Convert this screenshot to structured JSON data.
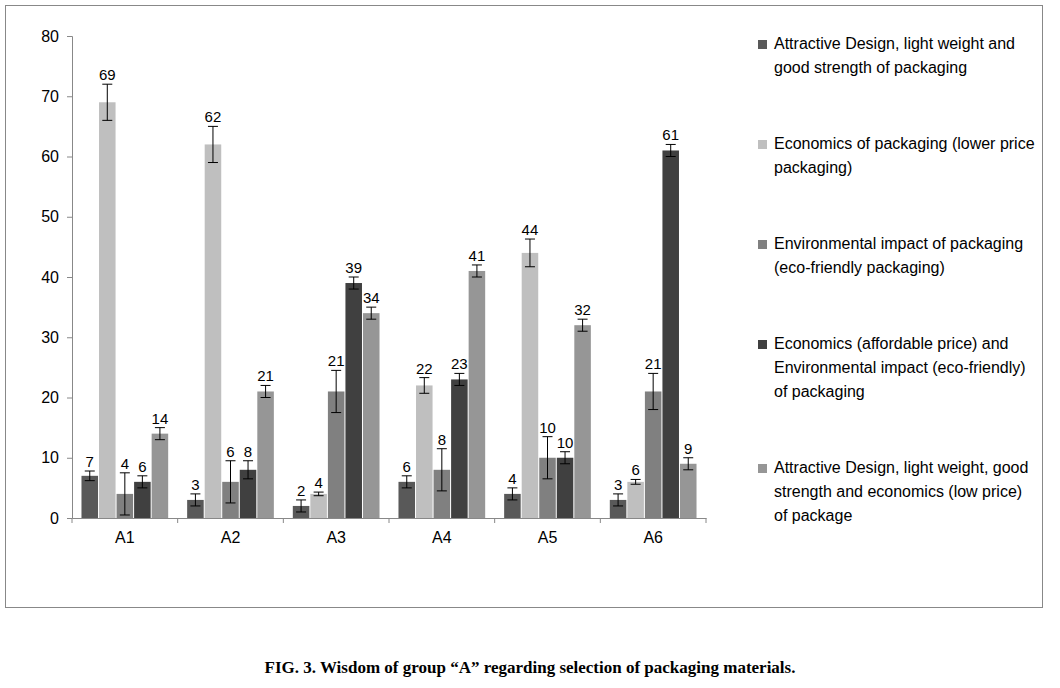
{
  "chart_data": {
    "type": "bar",
    "title": "FIG. 3. Wisdom of group “A” regarding selection of packaging materials.",
    "categories": [
      "A1",
      "A2",
      "A3",
      "A4",
      "A5",
      "A6"
    ],
    "series": [
      {
        "name": "Attractive Design, light weight and good strength of packaging",
        "color": "#595959",
        "values": [
          7,
          3,
          2,
          6,
          4,
          3
        ],
        "errors": [
          0.8,
          1,
          1,
          1,
          1,
          1
        ]
      },
      {
        "name": "Economics of packaging (lower price packaging)",
        "color": "#bfbfbf",
        "values": [
          69,
          62,
          4,
          22,
          44,
          6
        ],
        "errors": [
          3,
          3,
          0.3,
          1.3,
          2.3,
          0.4
        ]
      },
      {
        "name": "Environmental impact of packaging (eco-friendly packaging)",
        "color": "#808080",
        "values": [
          4,
          6,
          21,
          8,
          10,
          21
        ],
        "errors": [
          3.5,
          3.5,
          3.5,
          3.5,
          3.5,
          3
        ]
      },
      {
        "name": "Economics (affordable price) and Environmental impact (eco-friendly) of packaging",
        "color": "#404040",
        "values": [
          6,
          8,
          39,
          23,
          10,
          61
        ],
        "errors": [
          1,
          1.5,
          1,
          1,
          1,
          1
        ]
      },
      {
        "name": "Attractive Design, light weight, good strength and economics (low price) of package",
        "color": "#969696",
        "values": [
          14,
          21,
          34,
          41,
          32,
          9
        ],
        "errors": [
          1,
          1,
          1,
          1,
          1,
          1
        ]
      }
    ],
    "ylim": [
      0,
      80
    ],
    "yticks": [
      0,
      10,
      20,
      30,
      40,
      50,
      60,
      70,
      80
    ],
    "grid": false,
    "legend": "right",
    "data_labels": true
  }
}
